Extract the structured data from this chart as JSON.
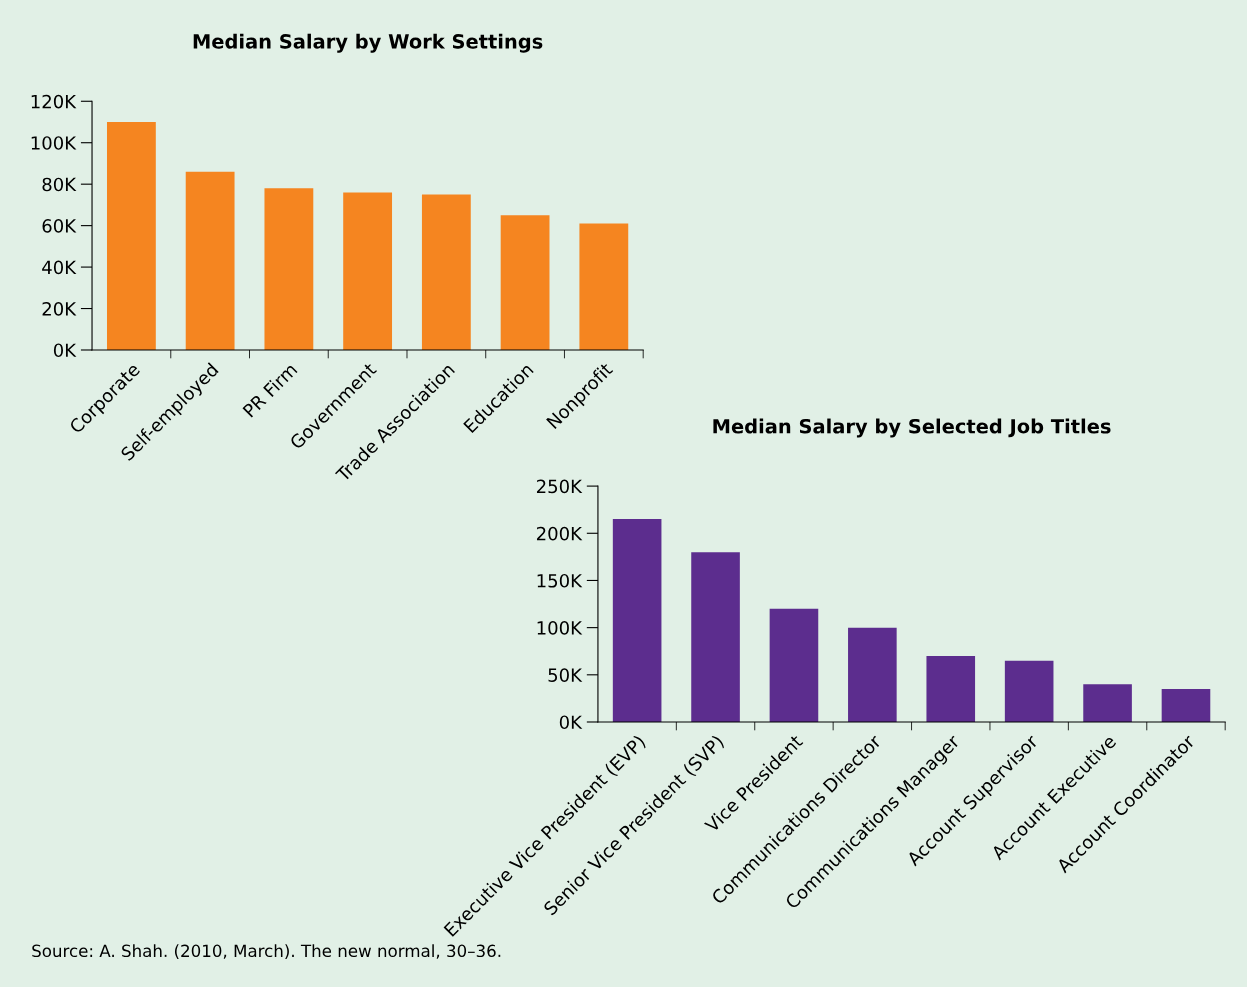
{
  "chart_data": [
    {
      "type": "bar",
      "title": "Median Salary by Work Settings",
      "categories": [
        "Corporate",
        "Self-employed",
        "PR Firm",
        "Government",
        "Trade Association",
        "Education",
        "Nonprofit"
      ],
      "values": [
        110000,
        86000,
        78000,
        76000,
        75000,
        65000,
        61000
      ],
      "color": "#f58520",
      "ylim": [
        0,
        120000
      ],
      "yticks": [
        {
          "value": 0,
          "label": "0K"
        },
        {
          "value": 20000,
          "label": "20K"
        },
        {
          "value": 40000,
          "label": "40K"
        },
        {
          "value": 60000,
          "label": "60K"
        },
        {
          "value": 80000,
          "label": "80K"
        },
        {
          "value": 100000,
          "label": "100K"
        },
        {
          "value": 120000,
          "label": "120K"
        }
      ],
      "grid": false
    },
    {
      "type": "bar",
      "title": "Median Salary by Selected Job Titles",
      "categories": [
        "Executive Vice President (EVP)",
        "Senior Vice President (SVP)",
        "Vice President",
        "Communications Director",
        "Communications Manager",
        "Account Supervisor",
        "Account Executive",
        "Account Coordinator"
      ],
      "values": [
        215000,
        180000,
        120000,
        100000,
        70000,
        65000,
        40000,
        35000
      ],
      "color": "#5c2d8e",
      "ylim": [
        0,
        250000
      ],
      "yticks": [
        {
          "value": 0,
          "label": "0K"
        },
        {
          "value": 50000,
          "label": "50K"
        },
        {
          "value": 100000,
          "label": "100K"
        },
        {
          "value": 150000,
          "label": "150K"
        },
        {
          "value": 200000,
          "label": "200K"
        },
        {
          "value": 250000,
          "label": "250K"
        }
      ],
      "grid": false,
      "annotations": [
        "Source: A. Shah. (2010, March). The new normal, 30–36."
      ]
    }
  ]
}
